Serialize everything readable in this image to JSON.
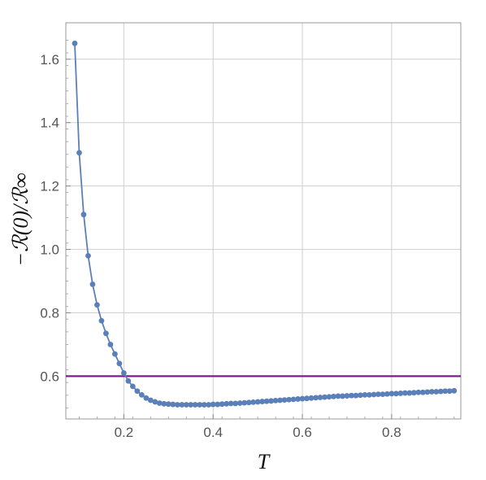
{
  "chart_data": {
    "type": "line",
    "xlabel": "T",
    "ylabel": "−ℛ(0)/ℛ∞",
    "xlim": [
      0.07,
      0.955
    ],
    "ylim": [
      0.465,
      1.715
    ],
    "x_ticks": [
      0.2,
      0.4,
      0.6,
      0.8
    ],
    "x_tick_labels": [
      "0.2",
      "0.4",
      "0.6",
      "0.8"
    ],
    "y_ticks": [
      0.6,
      0.8,
      1.0,
      1.2,
      1.4,
      1.6
    ],
    "y_tick_labels": [
      "0.6",
      "0.8",
      "1.0",
      "1.2",
      "1.4",
      "1.6"
    ],
    "grid": true,
    "series": [
      {
        "color": "#5b7fb8",
        "marker": "circle",
        "x": [
          0.09,
          0.1,
          0.11,
          0.12,
          0.13,
          0.14,
          0.15,
          0.16,
          0.17,
          0.18,
          0.19,
          0.2,
          0.21,
          0.22,
          0.23,
          0.24,
          0.25,
          0.26,
          0.27,
          0.28,
          0.29,
          0.3,
          0.31,
          0.32,
          0.33,
          0.34,
          0.35,
          0.36,
          0.37,
          0.38,
          0.39,
          0.4,
          0.41,
          0.42,
          0.43,
          0.44,
          0.45,
          0.46,
          0.47,
          0.48,
          0.49,
          0.5,
          0.51,
          0.52,
          0.53,
          0.54,
          0.55,
          0.56,
          0.57,
          0.58,
          0.59,
          0.6,
          0.61,
          0.62,
          0.63,
          0.64,
          0.65,
          0.66,
          0.67,
          0.68,
          0.69,
          0.7,
          0.71,
          0.72,
          0.73,
          0.74,
          0.75,
          0.76,
          0.77,
          0.78,
          0.79,
          0.8,
          0.81,
          0.82,
          0.83,
          0.84,
          0.85,
          0.86,
          0.87,
          0.88,
          0.89,
          0.9,
          0.91,
          0.92,
          0.93,
          0.94
        ],
        "y": [
          1.65,
          1.305,
          1.11,
          0.98,
          0.89,
          0.825,
          0.775,
          0.735,
          0.7,
          0.67,
          0.64,
          0.61,
          0.585,
          0.568,
          0.553,
          0.541,
          0.531,
          0.524,
          0.519,
          0.515,
          0.513,
          0.512,
          0.511,
          0.51,
          0.51,
          0.51,
          0.51,
          0.51,
          0.51,
          0.51,
          0.51,
          0.511,
          0.511,
          0.512,
          0.513,
          0.514,
          0.514,
          0.515,
          0.516,
          0.517,
          0.518,
          0.519,
          0.52,
          0.521,
          0.522,
          0.523,
          0.524,
          0.525,
          0.526,
          0.527,
          0.528,
          0.529,
          0.53,
          0.531,
          0.532,
          0.533,
          0.534,
          0.535,
          0.536,
          0.537,
          0.537,
          0.538,
          0.539,
          0.539,
          0.54,
          0.541,
          0.541,
          0.542,
          0.543,
          0.543,
          0.544,
          0.545,
          0.545,
          0.546,
          0.547,
          0.547,
          0.548,
          0.549,
          0.549,
          0.55,
          0.551,
          0.551,
          0.552,
          0.553,
          0.553,
          0.554
        ]
      },
      {
        "color": "#7b1f86",
        "kind": "hline",
        "x": [
          0.07,
          0.955
        ],
        "y": [
          0.6,
          0.6
        ]
      }
    ]
  }
}
